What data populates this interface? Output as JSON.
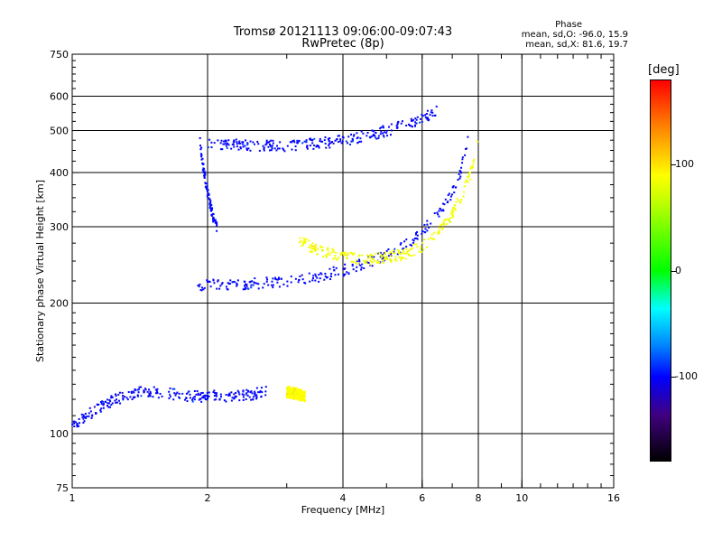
{
  "chart_data": {
    "type": "scatter",
    "title": "Tromsø 20121113 09:06:00-09:07:43",
    "subtitle": "RwPretec (8p)",
    "xlabel": "Frequency [MHz]",
    "ylabel": "Stationary phase Virtual Height [km]",
    "x_scale": "log",
    "y_scale": "log",
    "xlim": [
      1,
      16
    ],
    "ylim": [
      75,
      750
    ],
    "x_ticks": [
      1,
      2,
      4,
      6,
      8,
      10,
      16
    ],
    "x_tick_labels": [
      "1",
      "2",
      "4",
      "6",
      "8",
      "10",
      "16"
    ],
    "y_ticks": [
      75,
      100,
      200,
      300,
      400,
      500,
      600,
      750
    ],
    "y_tick_labels": [
      "75",
      "100",
      "200",
      "300",
      "400",
      "500",
      "600",
      "750"
    ],
    "x_grid": [
      2,
      4,
      6,
      8,
      10
    ],
    "y_grid": [
      100,
      200,
      300,
      400,
      500,
      600
    ],
    "grid": true,
    "phase_info": {
      "title": "Phase",
      "line_o": "mean, sd,O: -96.0, 15.9",
      "line_x": "mean, sd,X:  81.6, 19.7"
    },
    "colorbar": {
      "label": "[deg]",
      "ticks": [
        100,
        0,
        -100
      ],
      "tick_labels": [
        "100",
        "0",
        "-100"
      ],
      "range": [
        -180,
        180
      ],
      "colormap": "rainbow"
    },
    "traces": [
      {
        "mode": "O",
        "phase_deg": -100,
        "description_points": [
          [
            1.92,
            480
          ],
          [
            1.95,
            420
          ],
          [
            2.0,
            360
          ],
          [
            2.05,
            320
          ],
          [
            2.1,
            300
          ]
        ]
      },
      {
        "mode": "O",
        "phase_deg": -100,
        "points": [
          [
            1.9,
            220
          ],
          [
            2.5,
            222
          ],
          [
            3.0,
            224
          ],
          [
            3.5,
            230
          ],
          [
            4.0,
            238
          ],
          [
            4.5,
            248
          ],
          [
            5.0,
            258
          ],
          [
            5.5,
            272
          ],
          [
            6.0,
            292
          ],
          [
            6.5,
            320
          ],
          [
            7.0,
            360
          ],
          [
            7.3,
            400
          ],
          [
            7.5,
            450
          ],
          [
            7.7,
            500
          ]
        ]
      },
      {
        "mode": "O",
        "phase_deg": -100,
        "points": [
          [
            2.0,
            470
          ],
          [
            2.5,
            460
          ],
          [
            3.0,
            462
          ],
          [
            3.5,
            466
          ],
          [
            4.0,
            475
          ],
          [
            4.5,
            485
          ],
          [
            5.0,
            500
          ],
          [
            5.5,
            515
          ],
          [
            6.0,
            530
          ],
          [
            6.5,
            560
          ]
        ]
      },
      {
        "mode": "X",
        "phase_deg": 85,
        "points": [
          [
            3.2,
            280
          ],
          [
            3.5,
            265
          ],
          [
            4.0,
            255
          ],
          [
            4.5,
            252
          ],
          [
            5.0,
            255
          ],
          [
            5.5,
            260
          ],
          [
            6.0,
            270
          ],
          [
            6.5,
            290
          ],
          [
            7.0,
            320
          ],
          [
            7.4,
            360
          ],
          [
            7.7,
            400
          ],
          [
            7.9,
            450
          ],
          [
            8.0,
            500
          ]
        ]
      },
      {
        "mode": "O",
        "phase_deg": -100,
        "points": [
          [
            1.0,
            105
          ],
          [
            1.2,
            118
          ],
          [
            1.4,
            125
          ],
          [
            1.6,
            124
          ],
          [
            1.8,
            122
          ],
          [
            2.0,
            122
          ],
          [
            2.2,
            122
          ],
          [
            2.5,
            123
          ],
          [
            2.7,
            125
          ]
        ]
      },
      {
        "mode": "X",
        "phase_deg": 90,
        "points": [
          [
            3.0,
            125
          ],
          [
            3.1,
            124
          ],
          [
            3.2,
            123
          ],
          [
            3.3,
            122
          ]
        ]
      }
    ]
  }
}
